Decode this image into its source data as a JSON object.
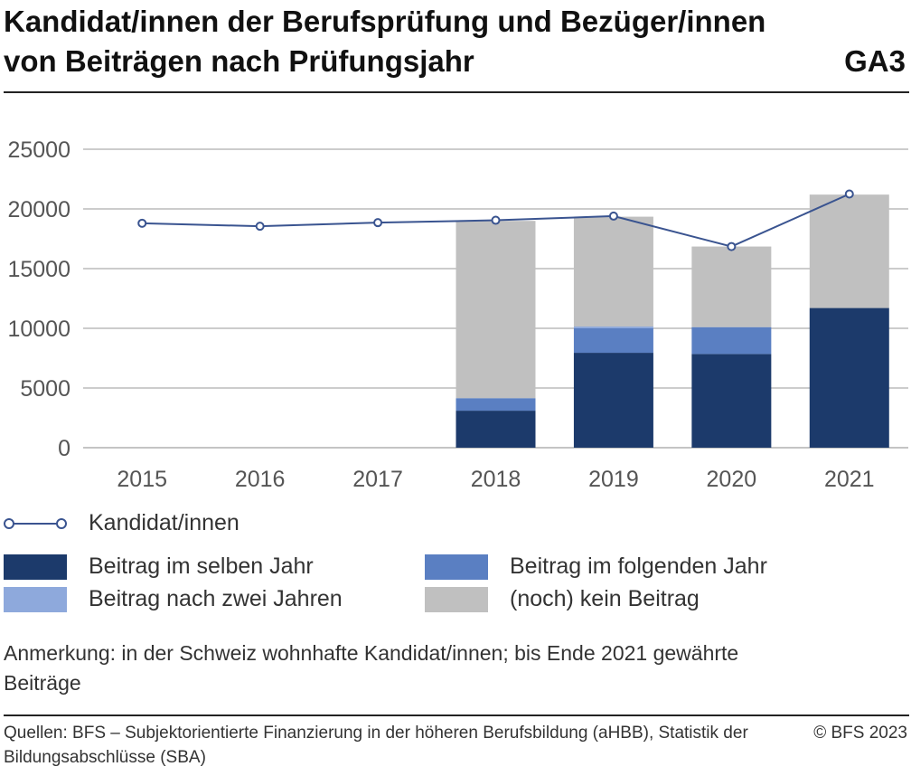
{
  "header": {
    "title": "Kandidat/innen der Berufsprüfung und Bezüger/innen von Beiträgen nach Prüfungsjahr",
    "code": "GA3"
  },
  "chart_data": {
    "type": "bar",
    "stacked": true,
    "categories": [
      "2015",
      "2016",
      "2017",
      "2018",
      "2019",
      "2020",
      "2021"
    ],
    "ylim": [
      0,
      25000
    ],
    "yticks": [
      "0",
      "5000",
      "10000",
      "15000",
      "20000",
      "25000"
    ],
    "grid": true,
    "series": [
      {
        "name": "Beitrag im selben Jahr",
        "color": "#1c3a6b",
        "values": [
          null,
          null,
          null,
          3100,
          7950,
          7850,
          11700
        ]
      },
      {
        "name": "Beitrag im folgenden Jahr",
        "color": "#5a7fc2",
        "values": [
          null,
          null,
          null,
          1050,
          2050,
          2250,
          0
        ]
      },
      {
        "name": "Beitrag nach zwei Jahren",
        "color": "#8ea9dc",
        "values": [
          null,
          null,
          null,
          0,
          150,
          0,
          0
        ]
      },
      {
        "name": "(noch) kein Beitrag",
        "color": "#c0c0c0",
        "values": [
          null,
          null,
          null,
          14850,
          9200,
          6750,
          9500
        ]
      }
    ],
    "line": {
      "name": "Kandidat/innen",
      "color": "#3a5490",
      "values": [
        18800,
        18550,
        18850,
        19050,
        19400,
        16850,
        21250
      ]
    }
  },
  "legend": {
    "line_label": "Kandidat/innen",
    "items": [
      {
        "label": "Beitrag im selben Jahr",
        "color": "#1c3a6b"
      },
      {
        "label": "Beitrag im folgenden Jahr",
        "color": "#5a7fc2"
      },
      {
        "label": "Beitrag nach zwei Jahren",
        "color": "#8ea9dc"
      },
      {
        "label": "(noch) kein Beitrag",
        "color": "#c0c0c0"
      }
    ]
  },
  "note": "Anmerkung: in der Schweiz wohnhafte Kandidat/innen; bis Ende 2021 gewährte Beiträge",
  "footer": {
    "source": "Quellen: BFS – Subjektorientierte Finanzierung in der höheren Berufsbildung (aHBB), Statistik der Bildungsabschlüsse (SBA)",
    "copyright": "© BFS 2023"
  }
}
